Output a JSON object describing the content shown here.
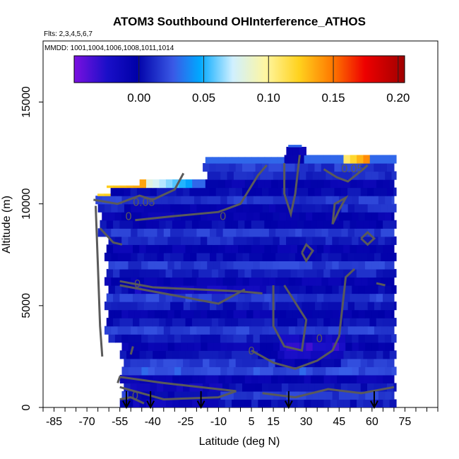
{
  "chart_data": {
    "type": "heatmap",
    "title": "ATOM3 Southbound OHInterference_ATHOS",
    "flights_text": "Flts: 2,3,4,5,6,7",
    "dates_text": "MMDD: 1001,1004,1006,1008,1011,1014",
    "xlabel": "Latitude (deg N)",
    "ylabel": "Altitude (m)",
    "xlim": [
      -90,
      90
    ],
    "ylim": [
      0,
      18000
    ],
    "x_tick_labels": [
      "-85",
      "-70",
      "-55",
      "-40",
      "-25",
      "-10",
      "5",
      "15",
      "30",
      "45",
      "60",
      "75"
    ],
    "x_tick_values": [
      -85,
      -70,
      -55,
      -40,
      -25,
      -10,
      5,
      15,
      30,
      45,
      60,
      75
    ],
    "y_tick_labels": [
      "0",
      "5000",
      "10000",
      "15000"
    ],
    "y_tick_values": [
      0,
      5000,
      10000,
      15000
    ],
    "colorbar": {
      "range": [
        -0.05,
        0.205
      ],
      "tick_labels": [
        "0.00",
        "0.05",
        "0.10",
        "0.15",
        "0.20"
      ],
      "tick_values": [
        0.0,
        0.05,
        0.1,
        0.15,
        0.2
      ]
    },
    "contour_labels": [
      {
        "text": "0.05",
        "lat": -44,
        "alt": 9900
      },
      {
        "text": "0.05",
        "lat": 51,
        "alt": 11550
      },
      {
        "text": "0",
        "lat": -51,
        "alt": 9200
      },
      {
        "text": "0",
        "lat": -47,
        "alt": 5900
      },
      {
        "text": "0",
        "lat": -8,
        "alt": 9200
      },
      {
        "text": "0",
        "lat": 36,
        "alt": 3200
      },
      {
        "text": "0",
        "lat": 5,
        "alt": 2600
      },
      {
        "text": "0",
        "lat": -48,
        "alt": 400
      }
    ],
    "profile_arrow_latitudes": [
      -52,
      -41,
      -18,
      22,
      61
    ],
    "data_extent": {
      "lat_min": -67,
      "lat_max": 71,
      "alt_min": 0,
      "alt_max": 12900
    }
  }
}
